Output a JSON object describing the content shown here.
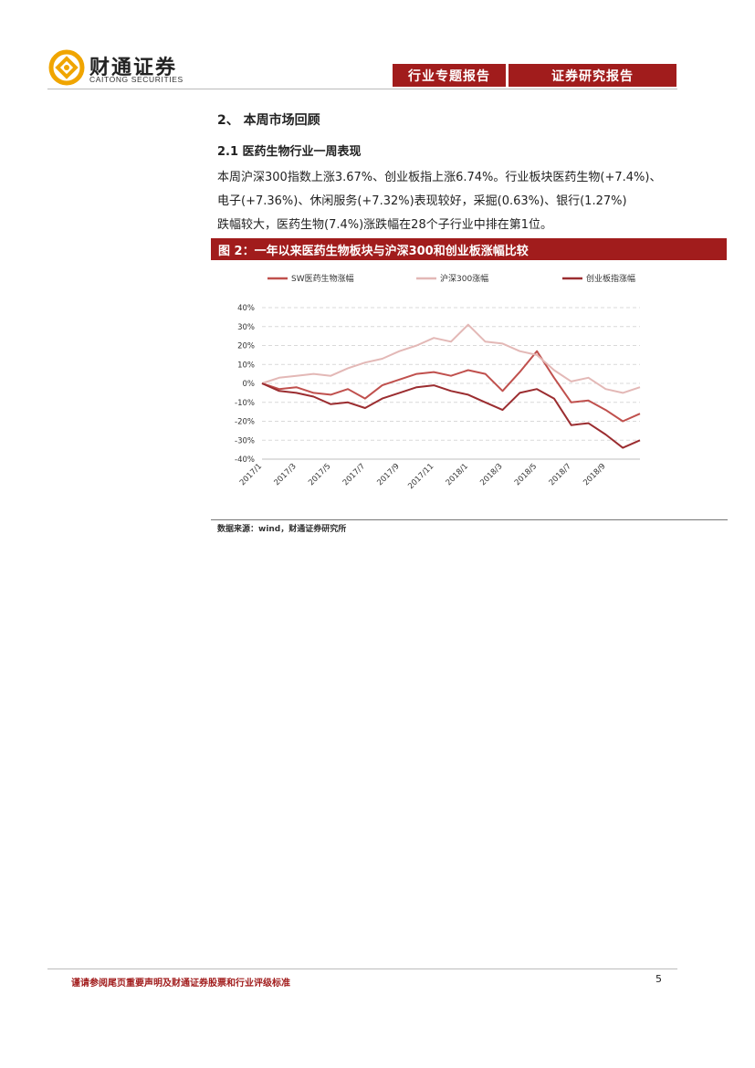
{
  "header": {
    "logo_cn": "财通证券",
    "logo_en": "CAITONG SECURITIES",
    "tag1": "行业专题报告",
    "tag2": "证券研究报告"
  },
  "section_title": "2、 本周市场回顾",
  "subsection_title": "2.1 医药生物行业一周表现",
  "paragraph_lines": [
    "本周沪深300指数上涨3.67%、创业板指上涨6.74%。行业板块医药生物(+7.4%)、",
    "电子(+7.36%)、休闲服务(+7.32%)表现较好，采掘(0.63%)、银行(1.27%)",
    "跌幅较大，医药生物(7.4%)涨跌幅在28个子行业中排在第1位。"
  ],
  "figure_title": "图 2：一年以来医药生物板块与沪深300和创业板涨幅比较",
  "chart_data": {
    "type": "line",
    "x": [
      "2017/1",
      "2017/2",
      "2017/3",
      "2017/4",
      "2017/5",
      "2017/6",
      "2017/7",
      "2017/8",
      "2017/9",
      "2017/10",
      "2017/11",
      "2017/12",
      "2018/1",
      "2018/2",
      "2018/3",
      "2018/4",
      "2018/5",
      "2018/6",
      "2018/7",
      "2018/8",
      "2018/9",
      "2018/10",
      "2018/11"
    ],
    "x_tick_labels": [
      "2017/1",
      "2017/3",
      "2017/5",
      "2017/7",
      "2017/9",
      "2017/11",
      "2018/1",
      "2018/3",
      "2018/5",
      "2018/7",
      "2018/9"
    ],
    "y_tick_labels": [
      "40%",
      "30%",
      "20%",
      "10%",
      "0%",
      "-10%",
      "-20%",
      "-30%",
      "-40%"
    ],
    "ylim": [
      -40,
      40
    ],
    "grid": true,
    "legend_position": "top",
    "series": [
      {
        "name": "SW医药生物涨幅",
        "color": "#c0504d",
        "values": [
          0,
          -3,
          -2,
          -5,
          -6,
          -3,
          -8,
          -1,
          2,
          5,
          6,
          4,
          7,
          5,
          -4,
          6,
          17,
          3,
          -10,
          -9,
          -14,
          -20,
          -16
        ]
      },
      {
        "name": "沪深300涨幅",
        "color": "#e3b8b6",
        "values": [
          0,
          3,
          4,
          5,
          4,
          8,
          11,
          13,
          17,
          20,
          24,
          22,
          31,
          22,
          21,
          17,
          15,
          7,
          1,
          3,
          -3,
          -5,
          -2
        ]
      },
      {
        "name": "创业板指涨幅",
        "color": "#9b2d30",
        "values": [
          0,
          -4,
          -5,
          -7,
          -11,
          -10,
          -13,
          -8,
          -5,
          -2,
          -1,
          -4,
          -6,
          -10,
          -14,
          -5,
          -3,
          -8,
          -22,
          -21,
          -27,
          -34,
          -30
        ]
      }
    ]
  },
  "source": "数据来源：wind，财通证券研究所",
  "footer": "谨请参阅尾页重要声明及财通证券股票和行业评级标准",
  "page_number": "5",
  "colors": {
    "brand_red": "#a11c1c",
    "logo_orange": "#f0a500"
  }
}
